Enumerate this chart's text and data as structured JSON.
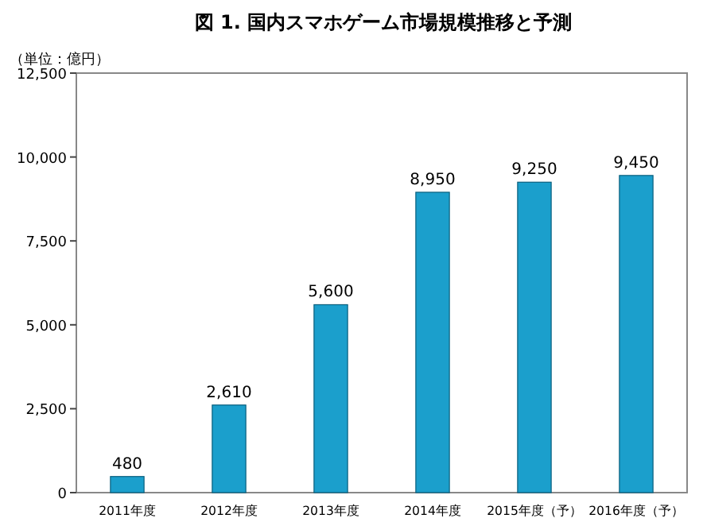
{
  "chart_data": {
    "type": "bar",
    "title": "図 1. 国内スマホゲーム市場規模推移と予測",
    "ylabel": "（単位：億円）",
    "categories": [
      "2011年度",
      "2012年度",
      "2013年度",
      "2014年度",
      "2015年度（予）",
      "2016年度（予）"
    ],
    "values": [
      480,
      2610,
      5600,
      8950,
      9250,
      9450
    ],
    "color": "#1b9fcc",
    "value_labels": [
      "480",
      "2,610",
      "5,600",
      "8,950",
      "9,250",
      "9,450"
    ],
    "ylim": [
      0,
      12500
    ],
    "yticks": [
      0,
      {
        "value": 2500,
        "label": "2,500"
      },
      {
        "value": 5000,
        "label": "5,000"
      },
      {
        "value": 7500,
        "label": "7,500"
      },
      {
        "value": 10000,
        "label": "10,000"
      },
      {
        "value": 12500,
        "label": "12,500"
      }
    ]
  }
}
